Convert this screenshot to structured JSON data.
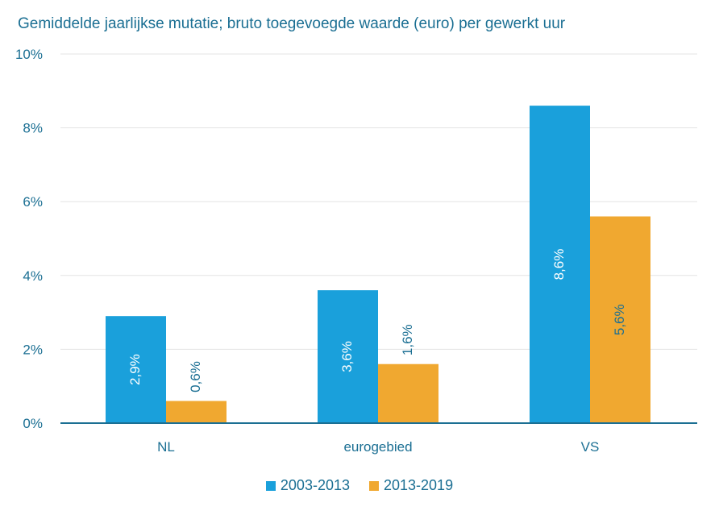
{
  "chart_data": {
    "type": "bar",
    "title": "Gemiddelde jaarlijkse mutatie; bruto toegevoegde waarde (euro) per gewerkt uur",
    "categories": [
      "NL",
      "eurogebied",
      "VS"
    ],
    "series": [
      {
        "name": "2003-2013",
        "values": [
          2.9,
          3.6,
          8.6
        ],
        "labels": [
          "2,9%",
          "3,6%",
          "8,6%"
        ],
        "color": "#1aa0db",
        "label_color": "#ffffff"
      },
      {
        "name": "2013-2019",
        "values": [
          0.6,
          1.6,
          5.6
        ],
        "labels": [
          "0,6%",
          "1,6%",
          "5,6%"
        ],
        "color": "#f0a830",
        "label_color": "#1b6f93"
      }
    ],
    "ylim": [
      0,
      10
    ],
    "yticks": [
      0,
      2,
      4,
      6,
      8,
      10
    ],
    "ytick_labels": [
      "0%",
      "2%",
      "4%",
      "6%",
      "8%",
      "10%"
    ],
    "xlabel": "",
    "ylabel": "",
    "grid": true,
    "legend_position": "bottom",
    "text_color": "#1b6f93",
    "grid_color": "#e3e3e3",
    "axis_color": "#1b6f93"
  }
}
